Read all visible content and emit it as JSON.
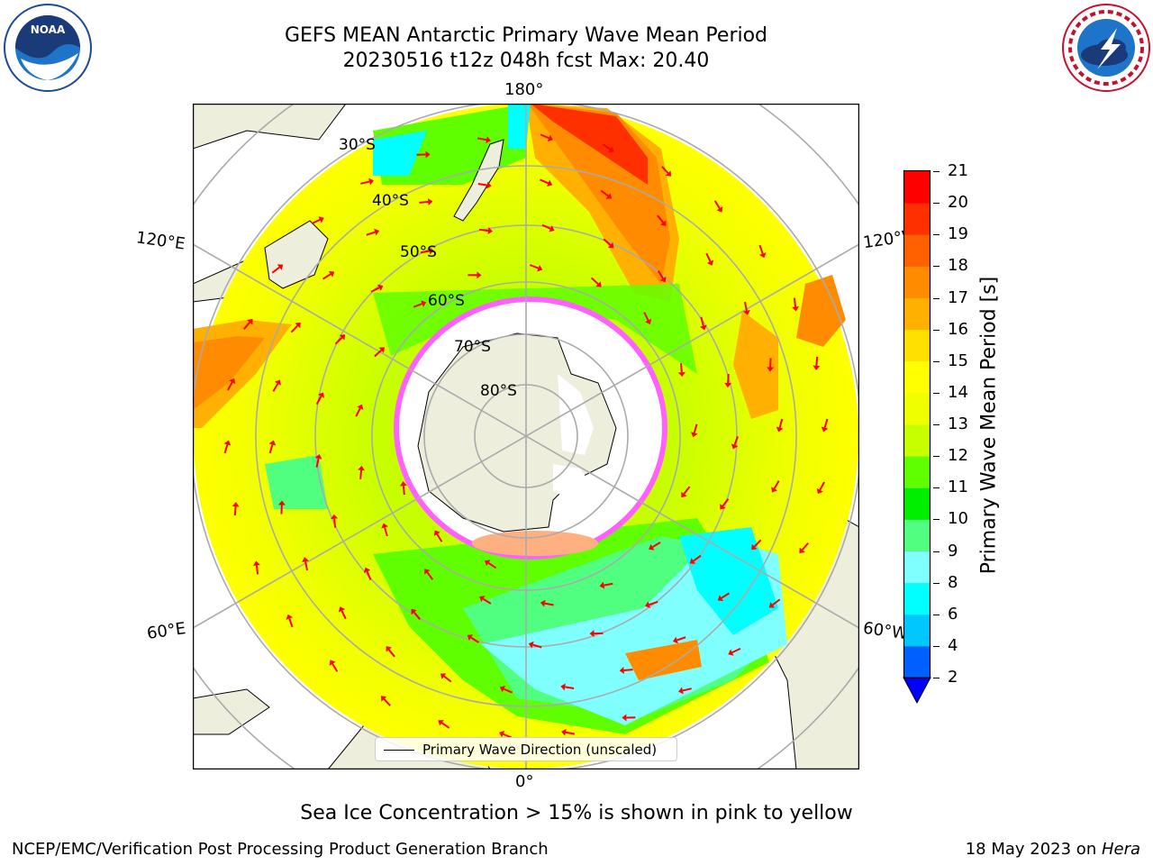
{
  "header": {
    "title_line1": "GEFS MEAN Antarctic Primary Wave Mean Period",
    "title_line2": "20230516 t12z 048h fcst   Max: 20.40"
  },
  "logos": {
    "left": "noaa-logo",
    "left_text": "NOAA",
    "right": "nws-logo",
    "right_text": "NATIONAL WEATHER SERVICE"
  },
  "map": {
    "projection": "south-polar-stereographic",
    "lon_labels": {
      "top": "180°",
      "bottom": "0°",
      "upper_left": "120°E",
      "upper_right": "120°W",
      "lower_left": "60°E",
      "lower_right": "60°W"
    },
    "lat_labels": [
      "30°S",
      "40°S",
      "50°S",
      "60°S",
      "70°S",
      "80°S"
    ],
    "legend": "Primary Wave Direction (unscaled)",
    "arrow_color": "#ff0000"
  },
  "chart_data": {
    "type": "heatmap",
    "title": "GEFS MEAN Antarctic Primary Wave Mean Period",
    "subtitle": "20230516 t12z 048h fcst   Max: 20.40",
    "max_value": 20.4,
    "colorbar": {
      "label": "Primary Wave Mean Period [s]",
      "ticks": [
        2,
        4,
        6,
        8,
        9,
        10,
        11,
        12,
        13,
        14,
        15,
        16,
        17,
        18,
        19,
        20,
        21
      ],
      "colors": [
        "#0060ff",
        "#00c8ff",
        "#00ffff",
        "#80ffff",
        "#50ff80",
        "#00ee00",
        "#60ff00",
        "#c8ff00",
        "#f0ff00",
        "#ffff00",
        "#ffe000",
        "#ffb000",
        "#ff8c00",
        "#ff6000",
        "#ff3000",
        "#ff0000"
      ],
      "extend_color": "#0000ff"
    }
  },
  "notes": {
    "sea_ice": "Sea Ice Concentration > 15% is shown in pink to yellow"
  },
  "footer": {
    "left": "NCEP/EMC/Verification Post Processing Product Generation Branch",
    "right_prefix": "18 May 2023 on ",
    "right_host": "Hera"
  }
}
